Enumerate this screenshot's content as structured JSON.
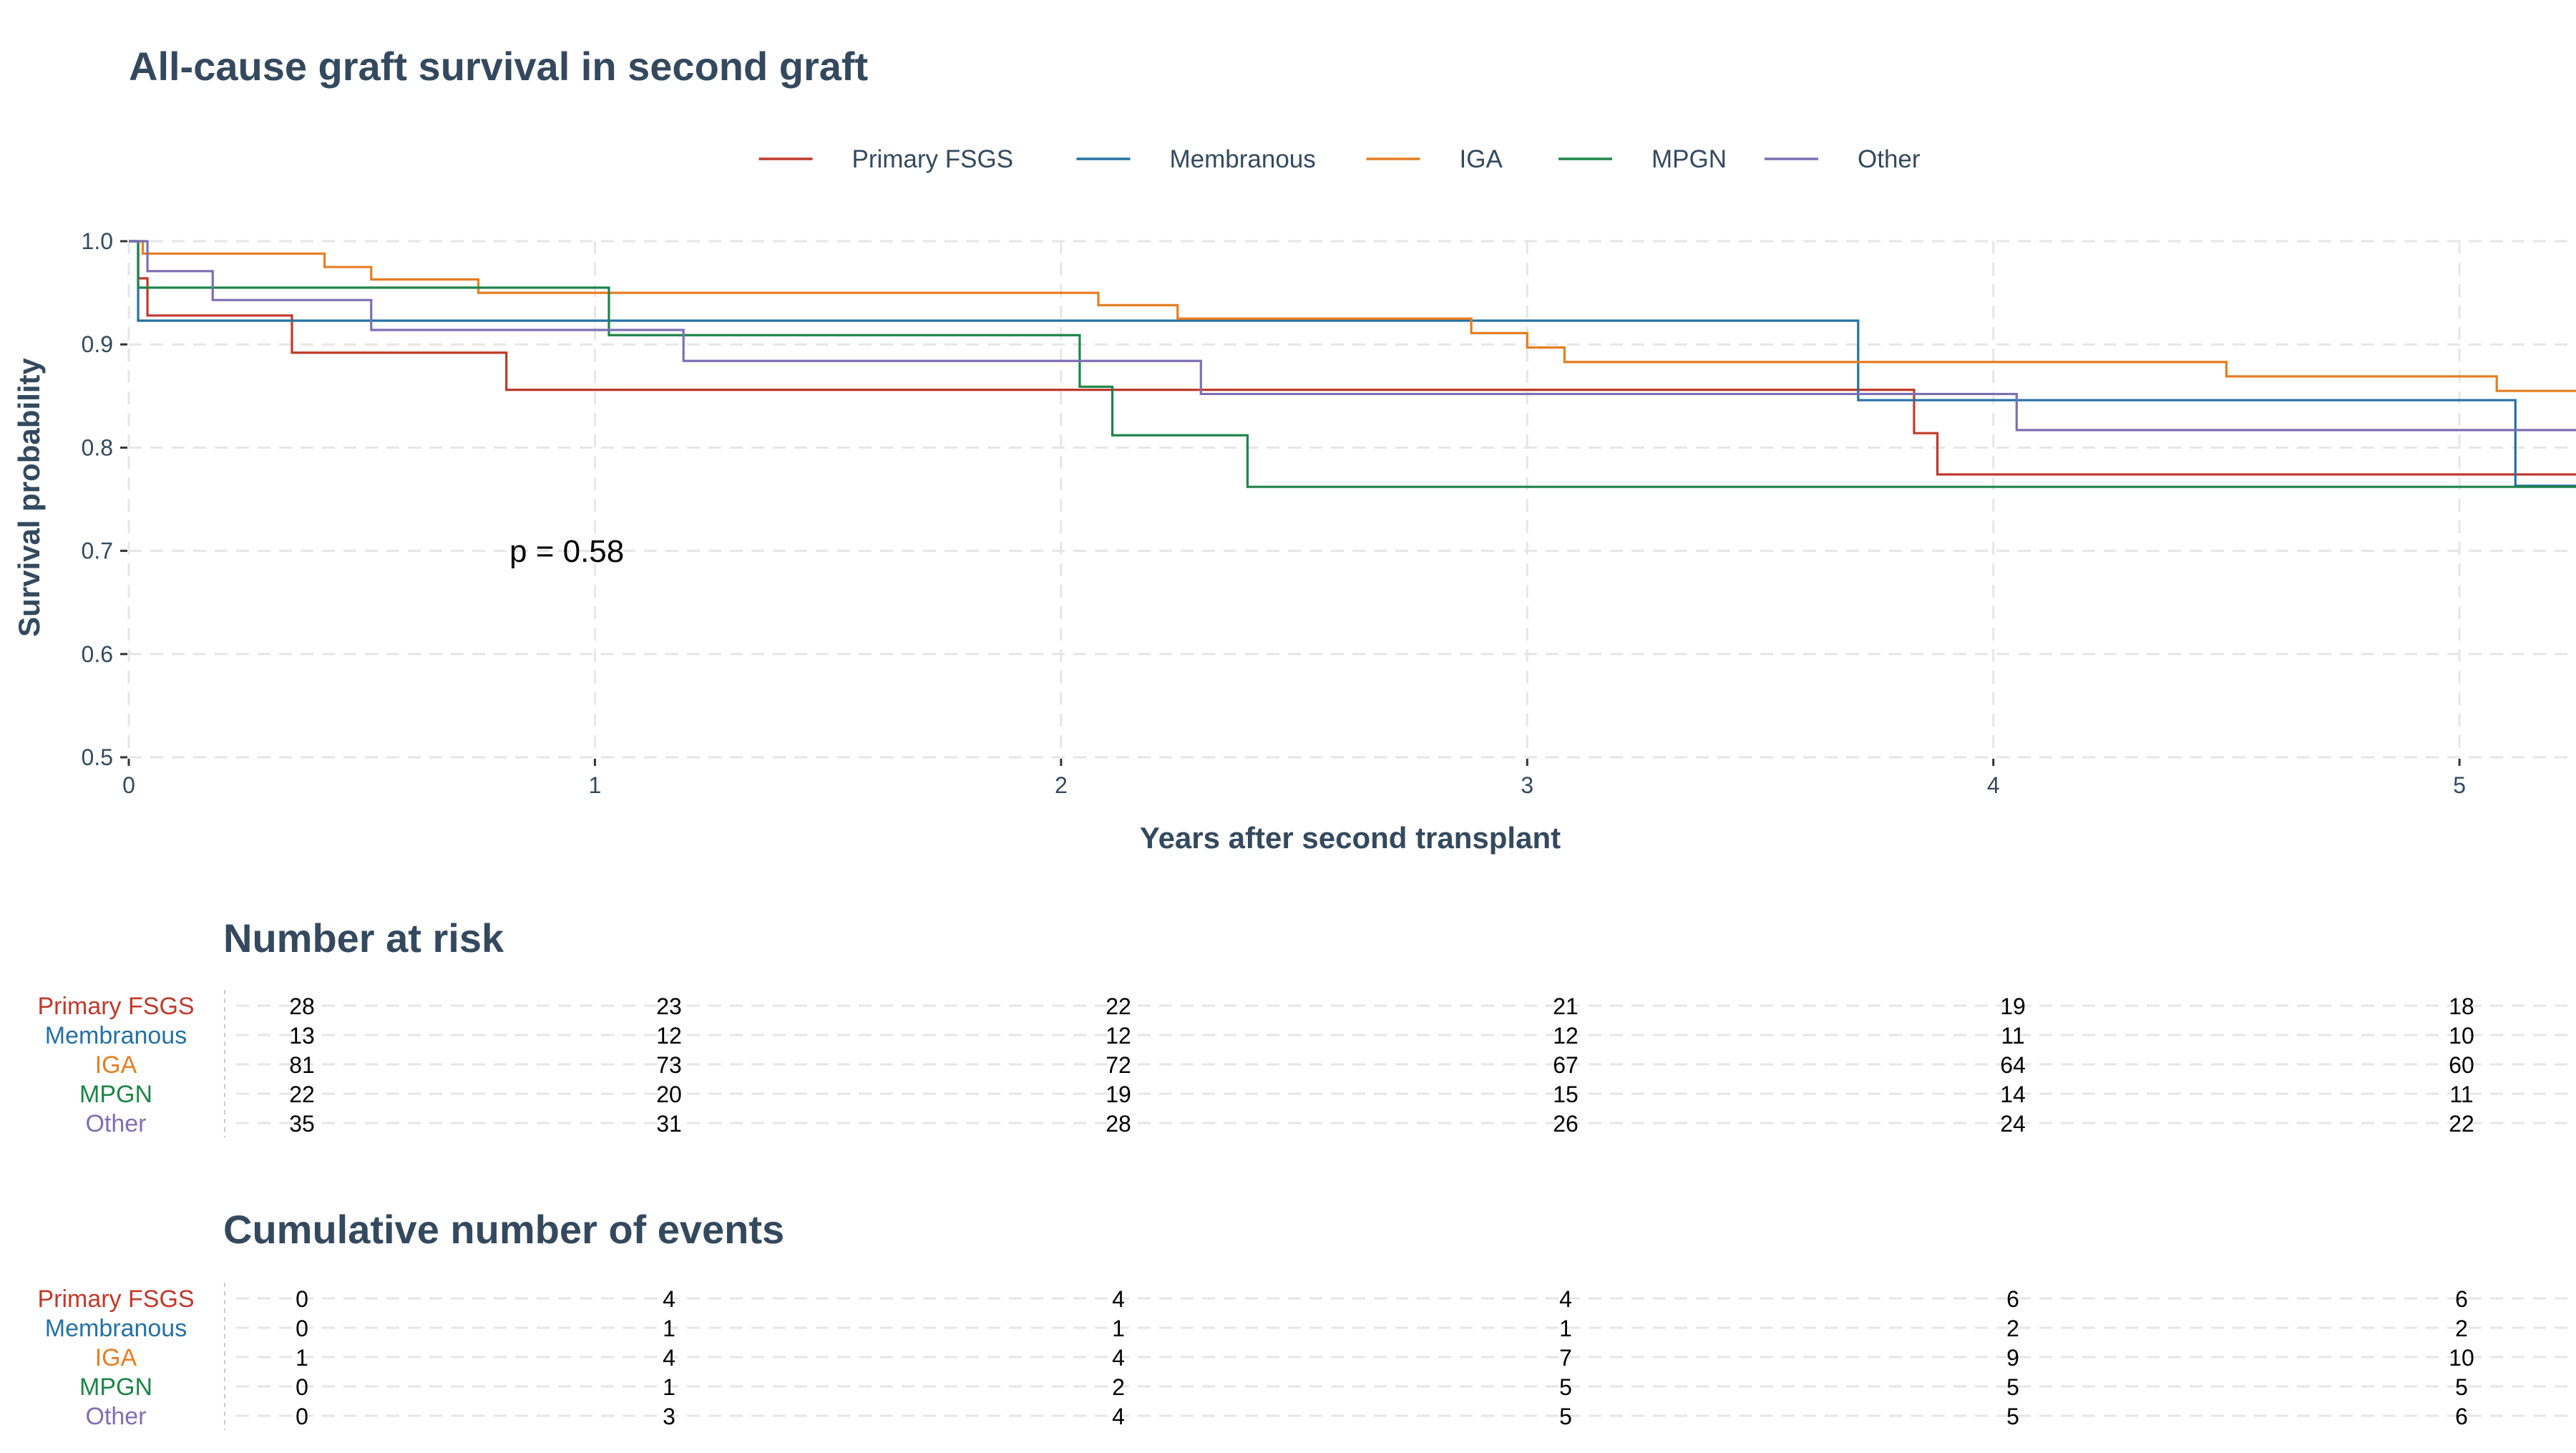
{
  "chart_data": {
    "type": "line",
    "subtype": "kaplan-meier step",
    "title": "All-cause graft survival in second graft",
    "xlabel": "Years after second transplant",
    "ylabel": "Survival probability",
    "xlim": [
      0,
      5.25
    ],
    "ylim": [
      0.5,
      1.0
    ],
    "x_ticks": [
      "0",
      "1",
      "2",
      "3",
      "4",
      "5"
    ],
    "y_ticks": [
      "0.5",
      "0.6",
      "0.7",
      "0.8",
      "0.9",
      "1.0"
    ],
    "grid": true,
    "legend_position": "top",
    "annotation": "p = 0.58",
    "series": [
      {
        "name": "Primary FSGS",
        "color": "#c0392b",
        "x": [
          0,
          0.02,
          0.04,
          0.35,
          0.81,
          3.83,
          3.88,
          5.25
        ],
        "y": [
          1.0,
          0.964,
          0.928,
          0.892,
          0.856,
          0.814,
          0.774,
          0.774
        ]
      },
      {
        "name": "Membranous",
        "color": "#2471a3",
        "x": [
          0,
          0.02,
          3.71,
          5.12,
          5.25
        ],
        "y": [
          1.0,
          0.923,
          0.846,
          0.763,
          0.763
        ]
      },
      {
        "name": "IGA",
        "color": "#e67e22",
        "x": [
          0,
          0.03,
          0.42,
          0.52,
          0.75,
          1.0,
          2.08,
          2.25,
          2.88,
          3.0,
          3.08,
          4.5,
          5.08,
          5.25
        ],
        "y": [
          1.0,
          0.988,
          0.975,
          0.963,
          0.95,
          0.95,
          0.938,
          0.925,
          0.911,
          0.897,
          0.883,
          0.869,
          0.855,
          0.855
        ]
      },
      {
        "name": "MPGN",
        "color": "#1e8449",
        "x": [
          0,
          0.02,
          0.7,
          1.03,
          2.04,
          2.11,
          2.4,
          5.25
        ],
        "y": [
          1.0,
          0.955,
          0.955,
          0.909,
          0.859,
          0.812,
          0.762,
          0.762
        ]
      },
      {
        "name": "Other",
        "color": "#7d6fb3",
        "x": [
          0,
          0.04,
          0.18,
          0.52,
          1.19,
          2.3,
          4.05,
          5.25
        ],
        "y": [
          1.0,
          0.971,
          0.943,
          0.914,
          0.884,
          0.852,
          0.817,
          0.817
        ]
      }
    ],
    "number_at_risk": {
      "title": "Number at risk",
      "rows": [
        {
          "label": "Primary FSGS",
          "color": "#c0392b",
          "values": [
            "28",
            "23",
            "22",
            "21",
            "19",
            "18"
          ]
        },
        {
          "label": "Membranous",
          "color": "#2471a3",
          "values": [
            "13",
            "12",
            "12",
            "12",
            "11",
            "10"
          ]
        },
        {
          "label": "IGA",
          "color": "#e67e22",
          "values": [
            "81",
            "73",
            "72",
            "67",
            "64",
            "60"
          ]
        },
        {
          "label": "MPGN",
          "color": "#1e8449",
          "values": [
            "22",
            "20",
            "19",
            "15",
            "14",
            "11"
          ]
        },
        {
          "label": "Other",
          "color": "#7d6fb3",
          "values": [
            "35",
            "31",
            "28",
            "26",
            "24",
            "22"
          ]
        }
      ]
    },
    "cumulative_events": {
      "title": "Cumulative number of events",
      "rows": [
        {
          "label": "Primary FSGS",
          "color": "#c0392b",
          "values": [
            "0",
            "4",
            "4",
            "4",
            "6",
            "6"
          ]
        },
        {
          "label": "Membranous",
          "color": "#2471a3",
          "values": [
            "0",
            "1",
            "1",
            "1",
            "2",
            "2"
          ]
        },
        {
          "label": "IGA",
          "color": "#e67e22",
          "values": [
            "1",
            "4",
            "4",
            "7",
            "9",
            "10"
          ]
        },
        {
          "label": "MPGN",
          "color": "#1e8449",
          "values": [
            "0",
            "1",
            "2",
            "5",
            "5",
            "5"
          ]
        },
        {
          "label": "Other",
          "color": "#7d6fb3",
          "values": [
            "0",
            "3",
            "4",
            "5",
            "5",
            "6"
          ]
        }
      ]
    }
  }
}
